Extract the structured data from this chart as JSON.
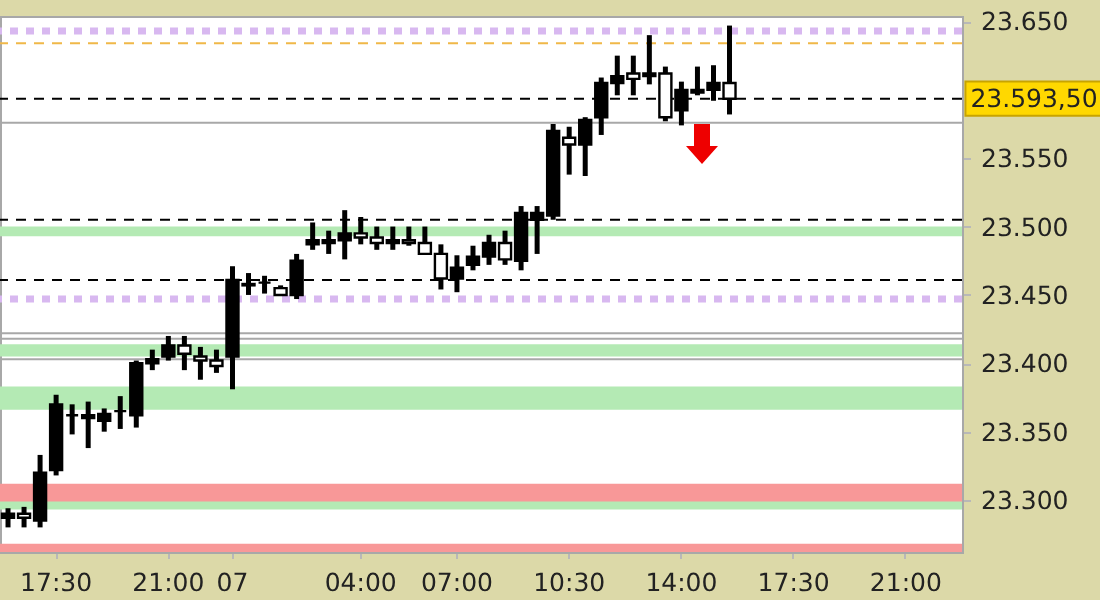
{
  "chart_data": {
    "type": "candlestick",
    "categories": [
      null,
      null,
      null,
      "17:30",
      null,
      null,
      null,
      null,
      null,
      null,
      "21:00",
      null,
      null,
      null,
      "07",
      null,
      null,
      null,
      null,
      null,
      null,
      null,
      "04:00",
      null,
      null,
      null,
      null,
      null,
      "07:00",
      null,
      null,
      null,
      null,
      null,
      null,
      "10:30",
      null,
      null,
      null,
      null,
      null,
      null,
      "14:00",
      null,
      null,
      null,
      null,
      null,
      null,
      "17:30",
      null,
      null,
      null,
      null,
      null,
      null,
      "21:00",
      null,
      null,
      null
    ],
    "ohlc": [
      [
        23287,
        23294,
        23280,
        23290
      ],
      [
        23290,
        23295,
        23280,
        23287
      ],
      [
        23285,
        23333,
        23280,
        23320
      ],
      [
        23322,
        23377,
        23318,
        23370
      ],
      [
        23362,
        23370,
        23348,
        23362
      ],
      [
        23360,
        23372,
        23338,
        23362
      ],
      [
        23358,
        23367,
        23350,
        23363
      ],
      [
        23365,
        23376,
        23352,
        23365
      ],
      [
        23362,
        23402,
        23353,
        23400
      ],
      [
        23400,
        23410,
        23395,
        23403
      ],
      [
        23405,
        23420,
        23402,
        23413
      ],
      [
        23413,
        23420,
        23395,
        23407
      ],
      [
        23405,
        23412,
        23388,
        23402
      ],
      [
        23402,
        23410,
        23393,
        23398
      ],
      [
        23405,
        23471,
        23381,
        23461
      ],
      [
        23458,
        23466,
        23450,
        23457
      ],
      [
        23459,
        23464,
        23451,
        23459
      ],
      [
        23455,
        23457,
        23450,
        23450
      ],
      [
        23450,
        23480,
        23447,
        23475
      ],
      [
        23487,
        23503,
        23483,
        23490
      ],
      [
        23488,
        23497,
        23480,
        23490
      ],
      [
        23490,
        23512,
        23476,
        23495
      ],
      [
        23495,
        23507,
        23487,
        23492
      ],
      [
        23492,
        23500,
        23483,
        23488
      ],
      [
        23488,
        23500,
        23483,
        23490
      ],
      [
        23490,
        23500,
        23486,
        23488
      ],
      [
        23488,
        23500,
        23480,
        23480
      ],
      [
        23480,
        23487,
        23454,
        23462
      ],
      [
        23462,
        23479,
        23452,
        23470
      ],
      [
        23472,
        23486,
        23468,
        23478
      ],
      [
        23478,
        23494,
        23472,
        23488
      ],
      [
        23488,
        23497,
        23472,
        23476
      ],
      [
        23475,
        23515,
        23468,
        23510
      ],
      [
        23505,
        23515,
        23480,
        23510
      ],
      [
        23508,
        23575,
        23505,
        23570
      ],
      [
        23565,
        23573,
        23538,
        23560
      ],
      [
        23560,
        23580,
        23537,
        23578
      ],
      [
        23580,
        23609,
        23567,
        23605
      ],
      [
        23605,
        23625,
        23596,
        23610
      ],
      [
        23612,
        23625,
        23596,
        23608
      ],
      [
        23610,
        23640,
        23604,
        23612
      ],
      [
        23612,
        23617,
        23577,
        23580
      ],
      [
        23585,
        23606,
        23574,
        23600
      ],
      [
        23598,
        23617,
        23596,
        23600
      ],
      [
        23600,
        23618,
        23592,
        23605
      ],
      [
        23605,
        23647,
        23582,
        23593.5
      ],
      null,
      null,
      null,
      null,
      null,
      null,
      null,
      null,
      null,
      null,
      null,
      null,
      null,
      null
    ],
    "color": "#000000",
    "ylim": [
      23262,
      23654
    ],
    "yticks": [
      {
        "value": 23650,
        "label": "23.650"
      },
      {
        "value": 23550,
        "label": "23.550"
      },
      {
        "value": 23500,
        "label": "23.500"
      },
      {
        "value": 23450,
        "label": "23.450"
      },
      {
        "value": 23400,
        "label": "23.400"
      },
      {
        "value": 23350,
        "label": "23.350"
      },
      {
        "value": 23300,
        "label": "23.300"
      }
    ],
    "ref_lines": [
      {
        "axis": "y",
        "value": 23593.5,
        "label": "23.593,50",
        "color": "#000000",
        "line_style": "dashed"
      },
      {
        "axis": "y",
        "value": 23505,
        "color": "#000000",
        "line_style": "dashed"
      },
      {
        "axis": "y",
        "value": 23461,
        "color": "#000000",
        "line_style": "dashed"
      },
      {
        "axis": "y",
        "value": 23643,
        "color": "#d8b8f0",
        "line_style": "dotted"
      },
      {
        "axis": "y",
        "value": 23447,
        "color": "#d8b8f0",
        "line_style": "dotted"
      },
      {
        "axis": "y",
        "value": 23634,
        "color": "#f0b848",
        "line_style": "dashed"
      },
      {
        "axis": "y",
        "value": 23576,
        "color": "#a8a8a8",
        "line_style": "solid"
      },
      {
        "axis": "y",
        "value": 23422,
        "color": "#a8a8a8",
        "line_style": "solid"
      },
      {
        "axis": "y",
        "value": 23418,
        "color": "#a8a8a8",
        "line_style": "solid"
      },
      {
        "axis": "y",
        "value": 23403,
        "color": "#a8a8a8",
        "line_style": "solid"
      }
    ],
    "bands": [
      {
        "axis": "y",
        "from": 23493,
        "to": 23500,
        "color": "#b4eab4"
      },
      {
        "axis": "y",
        "from": 23405,
        "to": 23414,
        "color": "#b4eab4"
      },
      {
        "axis": "y",
        "from": 23366,
        "to": 23383,
        "color": "#b4eab4"
      },
      {
        "axis": "y",
        "from": 23293,
        "to": 23310,
        "color": "#b4eab4"
      },
      {
        "axis": "y",
        "from": 23299,
        "to": 23312,
        "color": "#f89898"
      },
      {
        "axis": "y",
        "from": 23262,
        "to": 23268,
        "color": "#f89898"
      }
    ]
  }
}
